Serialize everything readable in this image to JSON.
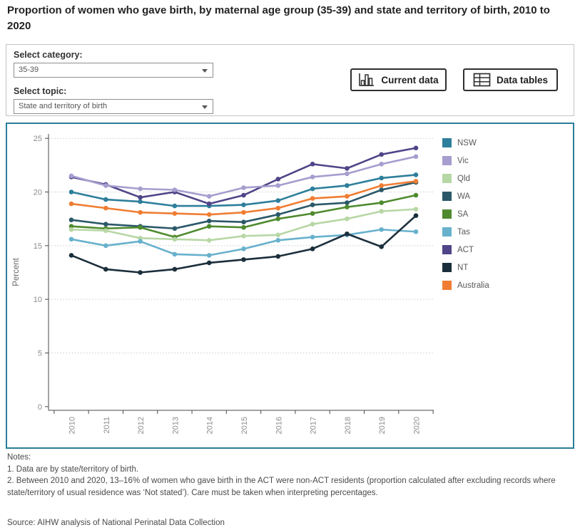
{
  "title": "Proportion of women who gave birth, by maternal age group (35-39) and state and territory of birth, 2010 to 2020",
  "controls": {
    "category_label": "Select category:",
    "category_value": "35-39",
    "topic_label": "Select topic:",
    "topic_value": "State and territory of birth",
    "current_data_button": "Current data",
    "data_tables_button": "Data tables"
  },
  "chart_data": {
    "type": "line",
    "x": [
      "2010",
      "2011",
      "2012",
      "2013",
      "2014",
      "2015",
      "2016",
      "2017",
      "2018",
      "2019",
      "2020"
    ],
    "ylabel": "Percent",
    "ylim": [
      0,
      25
    ],
    "yticks": [
      0,
      5,
      10,
      15,
      20,
      25
    ],
    "grid": "horizontal-dotted",
    "legend_position": "right",
    "series": [
      {
        "name": "NSW",
        "color": "#2e7f9b",
        "values": [
          20.0,
          19.3,
          19.1,
          18.7,
          18.7,
          18.8,
          19.2,
          20.3,
          20.6,
          21.3,
          21.6
        ]
      },
      {
        "name": "Vic",
        "color": "#a79dce",
        "values": [
          21.5,
          20.6,
          20.3,
          20.2,
          19.6,
          20.4,
          20.6,
          21.4,
          21.7,
          22.6,
          23.3
        ]
      },
      {
        "name": "Qld",
        "color": "#b7d7a5",
        "values": [
          16.5,
          16.4,
          15.7,
          15.6,
          15.5,
          15.9,
          16.0,
          17.0,
          17.5,
          18.2,
          18.4
        ]
      },
      {
        "name": "WA",
        "color": "#2b5869",
        "values": [
          17.4,
          17.0,
          16.8,
          16.6,
          17.3,
          17.2,
          17.9,
          18.8,
          19.0,
          20.2,
          20.9
        ]
      },
      {
        "name": "SA",
        "color": "#4f8a2e",
        "values": [
          16.8,
          16.6,
          16.7,
          15.8,
          16.8,
          16.7,
          17.5,
          18.0,
          18.6,
          19.0,
          19.7
        ]
      },
      {
        "name": "Tas",
        "color": "#68b1cd",
        "values": [
          15.6,
          15.0,
          15.4,
          14.2,
          14.1,
          14.7,
          15.5,
          15.8,
          16.0,
          16.5,
          16.3
        ]
      },
      {
        "name": "ACT",
        "color": "#4f4588",
        "values": [
          21.4,
          20.7,
          19.5,
          20.0,
          18.9,
          19.7,
          21.2,
          22.6,
          22.2,
          23.5,
          24.1
        ]
      },
      {
        "name": "NT",
        "color": "#1b2e3b",
        "values": [
          14.1,
          12.8,
          12.5,
          12.8,
          13.4,
          13.7,
          14.0,
          14.7,
          16.1,
          14.9,
          17.8
        ]
      },
      {
        "name": "Australia",
        "color": "#f07d33",
        "values": [
          18.9,
          18.5,
          18.1,
          18.0,
          17.9,
          18.1,
          18.5,
          19.4,
          19.6,
          20.6,
          21.0
        ]
      }
    ]
  },
  "notes": {
    "label": "Notes:",
    "note1": "1. Data are by state/territory of birth.",
    "note2": "2. Between 2010 and 2020, 13–16% of women who gave birth in the ACT were non-ACT residents (proportion calculated after excluding records where state/territory of usual residence was ‘Not stated’). Care must be taken when interpreting percentages."
  },
  "source": "Source: AIHW analysis of National Perinatal Data Collection"
}
